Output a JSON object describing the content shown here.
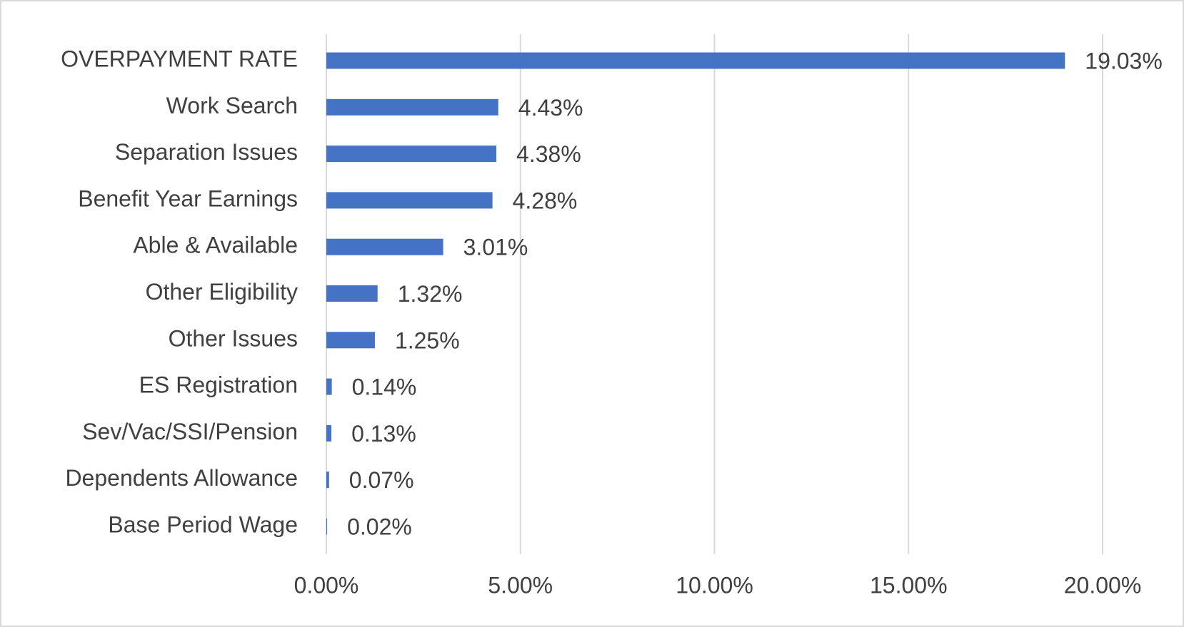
{
  "chart_data": {
    "type": "bar",
    "orientation": "horizontal",
    "categories": [
      "OVERPAYMENT RATE",
      "Work Search",
      "Separation Issues",
      "Benefit Year Earnings",
      "Able & Available",
      "Other Eligibility",
      "Other Issues",
      "ES Registration",
      "Sev/Vac/SSI/Pension",
      "Dependents Allowance",
      "Base Period Wage"
    ],
    "values": [
      19.03,
      4.43,
      4.38,
      4.28,
      3.01,
      1.32,
      1.25,
      0.14,
      0.13,
      0.07,
      0.02
    ],
    "value_labels": [
      "19.03%",
      "4.43%",
      "4.38%",
      "4.28%",
      "3.01%",
      "1.32%",
      "1.25%",
      "0.14%",
      "0.13%",
      "0.07%",
      "0.02%"
    ],
    "color": "#4472c4",
    "xlim": [
      0,
      20
    ],
    "xticks": [
      {
        "value": 0,
        "label": "0.00%"
      },
      {
        "value": 5,
        "label": "5.00%"
      },
      {
        "value": 10,
        "label": "10.00%"
      },
      {
        "value": 15,
        "label": "15.00%"
      },
      {
        "value": 20,
        "label": "20.00%"
      }
    ],
    "grid": true
  }
}
